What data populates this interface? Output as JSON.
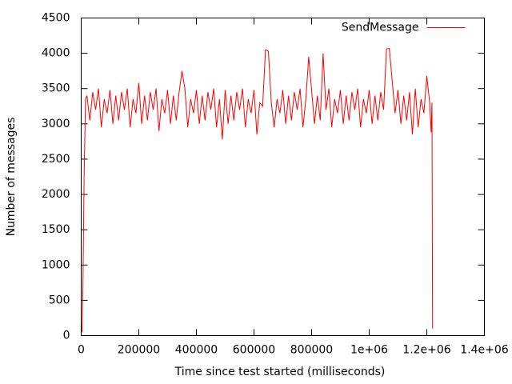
{
  "chart_data": {
    "type": "line",
    "xlabel": "Time since test started (milliseconds)",
    "ylabel": "Number of messages",
    "legend": "top right",
    "x": [
      3000,
      6000,
      10000,
      15000,
      20000,
      30000,
      40000,
      50000,
      60000,
      70000,
      80000,
      90000,
      100000,
      110000,
      120000,
      130000,
      140000,
      150000,
      160000,
      170000,
      180000,
      190000,
      200000,
      210000,
      220000,
      230000,
      240000,
      250000,
      260000,
      270000,
      280000,
      290000,
      300000,
      310000,
      320000,
      330000,
      340000,
      350000,
      360000,
      370000,
      380000,
      390000,
      400000,
      410000,
      420000,
      430000,
      440000,
      450000,
      460000,
      470000,
      480000,
      490000,
      500000,
      510000,
      520000,
      530000,
      540000,
      550000,
      560000,
      570000,
      580000,
      590000,
      600000,
      610000,
      620000,
      630000,
      640000,
      650000,
      660000,
      670000,
      680000,
      690000,
      700000,
      710000,
      720000,
      730000,
      740000,
      750000,
      760000,
      770000,
      780000,
      790000,
      800000,
      810000,
      820000,
      830000,
      840000,
      850000,
      860000,
      870000,
      880000,
      890000,
      900000,
      910000,
      920000,
      930000,
      940000,
      950000,
      960000,
      970000,
      980000,
      990000,
      1000000,
      1010000,
      1020000,
      1030000,
      1040000,
      1050000,
      1060000,
      1070000,
      1080000,
      1090000,
      1100000,
      1110000,
      1120000,
      1130000,
      1140000,
      1150000,
      1160000,
      1170000,
      1180000,
      1190000,
      1200000,
      1210000,
      1215000,
      1218000,
      1220000
    ],
    "series": [
      {
        "name": "SendMessage",
        "color": "#ff0000",
        "values": [
          50,
          700,
          2200,
          3350,
          3400,
          3050,
          3450,
          3200,
          3500,
          2950,
          3350,
          3150,
          3480,
          3000,
          3400,
          3050,
          3450,
          3200,
          3500,
          2950,
          3350,
          3150,
          3580,
          3000,
          3400,
          3050,
          3450,
          3200,
          3500,
          2900,
          3350,
          3150,
          3480,
          3000,
          3400,
          3050,
          3450,
          3750,
          3500,
          2950,
          3350,
          3150,
          3480,
          3000,
          3400,
          3050,
          3450,
          3200,
          3500,
          2950,
          3350,
          2780,
          3480,
          3000,
          3400,
          3050,
          3450,
          3200,
          3500,
          2950,
          3350,
          3150,
          3480,
          2850,
          3300,
          3250,
          4050,
          4030,
          3300,
          2950,
          3350,
          3150,
          3480,
          3000,
          3400,
          3050,
          3450,
          3200,
          3500,
          2950,
          3350,
          3950,
          3480,
          3000,
          3400,
          3050,
          4000,
          3200,
          3500,
          2950,
          3350,
          3150,
          3480,
          3000,
          3400,
          3050,
          3450,
          3200,
          3500,
          2950,
          3350,
          3150,
          3480,
          3000,
          3400,
          3050,
          3450,
          3200,
          4060,
          4070,
          3600,
          3150,
          3480,
          3000,
          3400,
          3050,
          3450,
          2850,
          3500,
          2950,
          3350,
          3150,
          3680,
          3300,
          2880,
          3300,
          100
        ]
      }
    ],
    "xlim": [
      0,
      1400000
    ],
    "xticks": [
      0,
      200000,
      400000,
      600000,
      800000,
      {
        "value": 1000000,
        "label": "1e+06"
      },
      {
        "value": 1200000,
        "label": "1.2e+06"
      },
      {
        "value": 1400000,
        "label": "1.4e+06"
      }
    ],
    "ylim": [
      0,
      4500
    ],
    "yticks": [
      0,
      500,
      1000,
      1500,
      2000,
      2500,
      3000,
      3500,
      4000,
      4500
    ]
  }
}
